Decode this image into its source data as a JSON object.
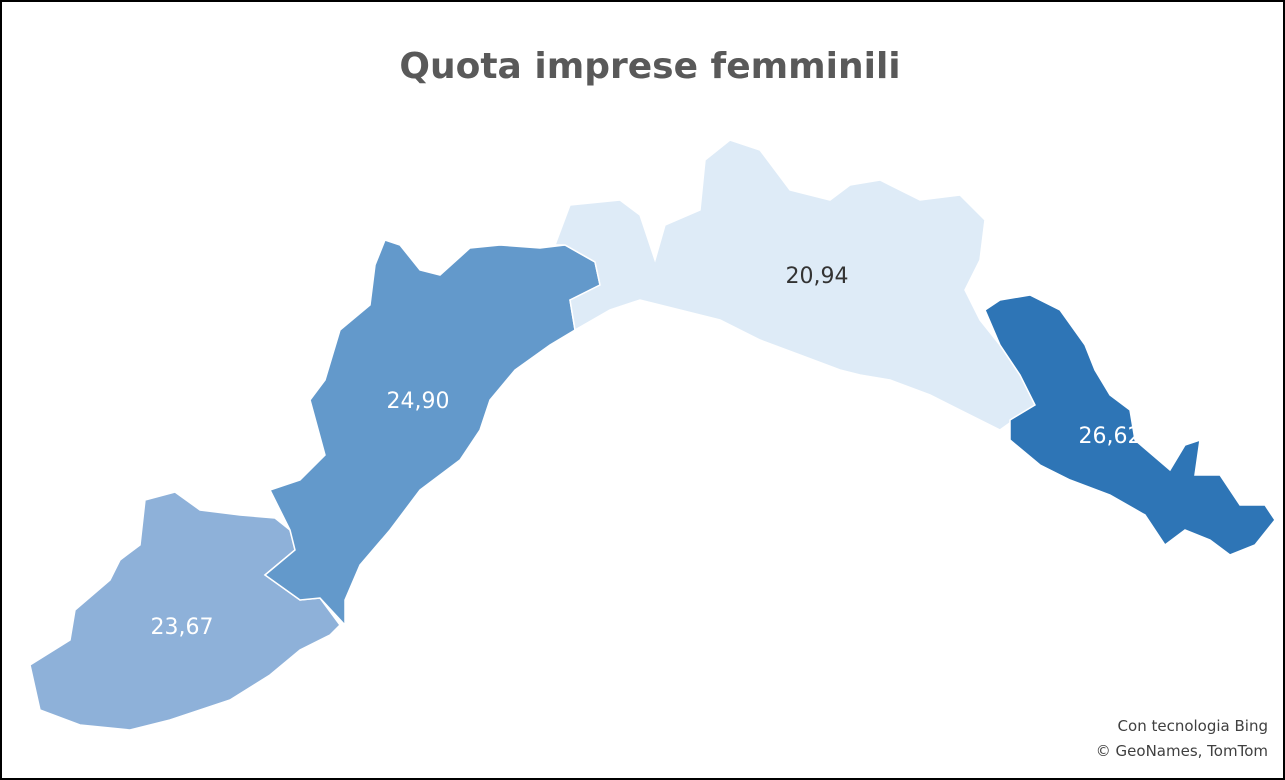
{
  "chart_data": {
    "type": "map",
    "title": "Quota imprese femminili",
    "values": [
      23.67,
      24.9,
      20.94,
      26.62
    ],
    "value_labels": [
      "23,67",
      "24,90",
      "20,94",
      "26,62"
    ],
    "colors": [
      "#8eb1d9",
      "#6399cb",
      "#deebf7",
      "#2e75b6"
    ],
    "credits": [
      "Con tecnologia Bing",
      "© GeoNames, TomTom"
    ]
  }
}
